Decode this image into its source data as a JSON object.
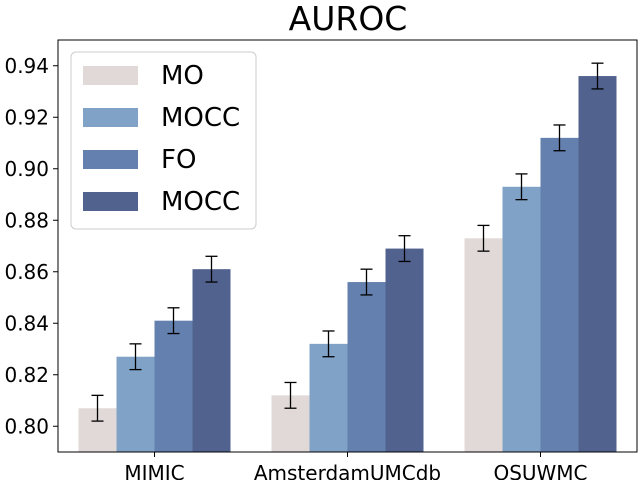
{
  "chart_data": {
    "type": "bar",
    "title": "AUROC",
    "xlabel": "",
    "ylabel": "",
    "categories": [
      "MIMIC",
      "AmsterdamUMCdb",
      "OSUWMC"
    ],
    "ylim": [
      0.79,
      0.95
    ],
    "yticks": [
      0.8,
      0.82,
      0.84,
      0.86,
      0.88,
      0.9,
      0.92,
      0.94
    ],
    "ytick_labels": [
      "0.80",
      "0.82",
      "0.84",
      "0.86",
      "0.88",
      "0.90",
      "0.92",
      "0.94"
    ],
    "legend_position": "top-left",
    "grid": false,
    "series": [
      {
        "name": "MO",
        "color": "#e1d9d7",
        "values": [
          0.807,
          0.812,
          0.873
        ],
        "errors": [
          0.005,
          0.005,
          0.005
        ]
      },
      {
        "name": "MOCC",
        "color": "#7fa2c6",
        "values": [
          0.827,
          0.832,
          0.893
        ],
        "errors": [
          0.005,
          0.005,
          0.005
        ]
      },
      {
        "name": "FO",
        "color": "#6480ae",
        "values": [
          0.841,
          0.856,
          0.912
        ],
        "errors": [
          0.005,
          0.005,
          0.005
        ]
      },
      {
        "name": "MOCC",
        "color": "#52628f",
        "values": [
          0.861,
          0.869,
          0.936
        ],
        "errors": [
          0.005,
          0.005,
          0.005
        ]
      }
    ]
  }
}
